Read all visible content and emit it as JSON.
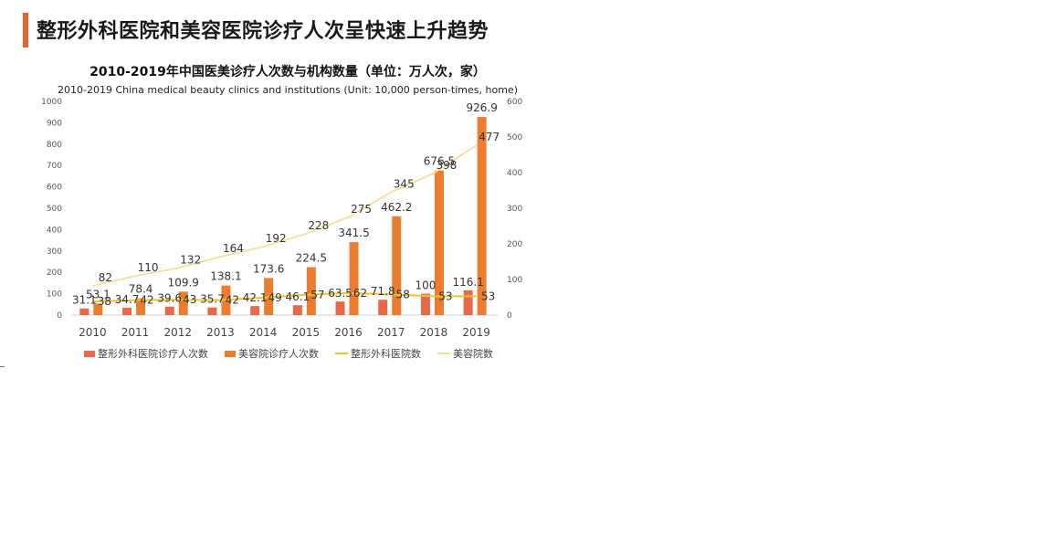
{
  "page": {
    "title": "整形外科医院和美容医院诊疗人次呈快速上升趋势",
    "accent_color": "#e8632c"
  },
  "chart_data": {
    "type": "bar",
    "title": "2010-2019年中国医美诊疗人次数与机构数量（单位：万人次，家）",
    "subtitle": "2010-2019 China medical beauty clinics and institutions (Unit: 10,000 person-times, home)",
    "categories": [
      "2010",
      "2011",
      "2012",
      "2013",
      "2014",
      "2015",
      "2016",
      "2017",
      "2018",
      "2019"
    ],
    "left_axis": {
      "min": 0,
      "max": 1000,
      "ticks": [
        "0",
        "100",
        "200",
        "300",
        "400",
        "500",
        "600",
        "700",
        "800",
        "900",
        "1000"
      ]
    },
    "right_axis": {
      "min": 0,
      "max": 600,
      "ticks": [
        "0",
        "100",
        "200",
        "300",
        "400",
        "500",
        "600"
      ]
    },
    "series": [
      {
        "name": "整形外科医院诊疗人次数",
        "kind": "bar",
        "axis": "left",
        "color": "#e8694a",
        "values": [
          31.1,
          34.7,
          39.6,
          35.7,
          42.1,
          46.1,
          63.5,
          71.8,
          100,
          116.1
        ],
        "labels": [
          "31.1",
          "34.7",
          "39.6",
          "35.7",
          "42.1",
          "46.1",
          "63.5",
          "71.8",
          "100",
          "116.1"
        ]
      },
      {
        "name": "美容院诊疗人次数",
        "kind": "bar",
        "axis": "left",
        "color": "#ec7d2e",
        "values": [
          53.1,
          78.4,
          109.9,
          138.1,
          173.6,
          224.5,
          341.5,
          462.2,
          676.5,
          926.9
        ],
        "labels": [
          "53.1",
          "78.4",
          "109.9",
          "138.1",
          "173.6",
          "224.5",
          "341.5",
          "462.2",
          "676.5",
          "926.9"
        ]
      },
      {
        "name": "整形外科医院数",
        "kind": "line",
        "axis": "right",
        "color": "#f2c22a",
        "values": [
          38,
          42,
          43,
          42,
          49,
          57,
          62,
          58,
          53,
          53
        ],
        "labels": [
          "38",
          "42",
          "43",
          "42",
          "49",
          "57",
          "62",
          "58",
          "53",
          "53"
        ]
      },
      {
        "name": "美容院数",
        "kind": "line",
        "axis": "right",
        "color": "#f7dc8c",
        "values": [
          82,
          110,
          132,
          164,
          192,
          228,
          275,
          345,
          398,
          477
        ],
        "labels": [
          "82",
          "110",
          "132",
          "164",
          "192",
          "228",
          "275",
          "345",
          "398",
          "477"
        ]
      }
    ],
    "legend_position": "bottom",
    "grid": false
  }
}
